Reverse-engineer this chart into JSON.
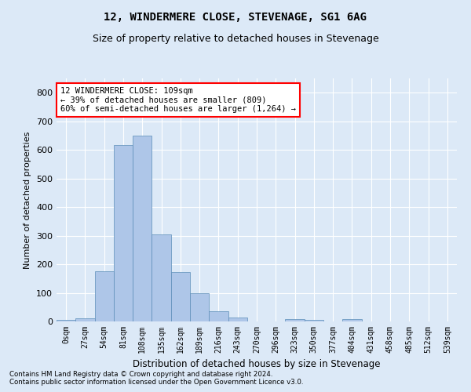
{
  "title": "12, WINDERMERE CLOSE, STEVENAGE, SG1 6AG",
  "subtitle": "Size of property relative to detached houses in Stevenage",
  "xlabel": "Distribution of detached houses by size in Stevenage",
  "ylabel": "Number of detached properties",
  "bin_labels": [
    "0sqm",
    "27sqm",
    "54sqm",
    "81sqm",
    "108sqm",
    "135sqm",
    "162sqm",
    "189sqm",
    "216sqm",
    "243sqm",
    "270sqm",
    "296sqm",
    "323sqm",
    "350sqm",
    "377sqm",
    "404sqm",
    "431sqm",
    "458sqm",
    "485sqm",
    "512sqm",
    "539sqm"
  ],
  "bar_values": [
    5,
    12,
    175,
    618,
    650,
    305,
    173,
    98,
    37,
    13,
    0,
    0,
    8,
    5,
    0,
    7,
    0,
    0,
    0,
    0,
    0
  ],
  "bar_color": "#aec6e8",
  "bar_edge_color": "#5b8db8",
  "ylim": [
    0,
    850
  ],
  "yticks": [
    0,
    100,
    200,
    300,
    400,
    500,
    600,
    700,
    800
  ],
  "annotation_lines": [
    "12 WINDERMERE CLOSE: 109sqm",
    "← 39% of detached houses are smaller (809)",
    "60% of semi-detached houses are larger (1,264) →"
  ],
  "footnote1": "Contains HM Land Registry data © Crown copyright and database right 2024.",
  "footnote2": "Contains public sector information licensed under the Open Government Licence v3.0.",
  "bg_color": "#dce9f7",
  "plot_bg_color": "#dce9f7",
  "grid_color": "#ffffff",
  "title_fontsize": 10,
  "subtitle_fontsize": 9,
  "bar_width": 1.0
}
